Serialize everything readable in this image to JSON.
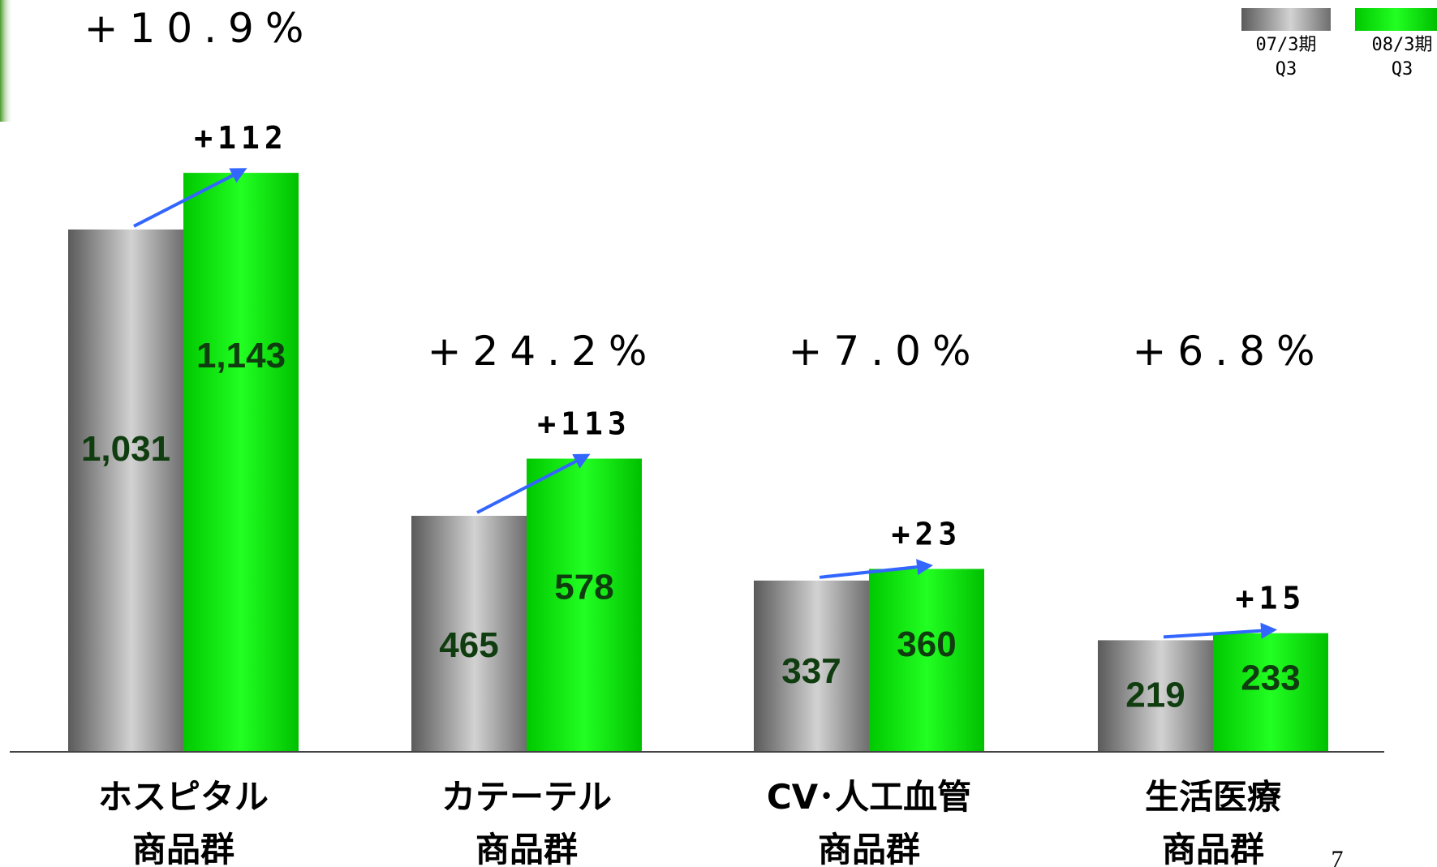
{
  "chart_data": {
    "type": "bar",
    "categories": [
      [
        "ホスピタル",
        "商品群"
      ],
      [
        "カテーテル",
        "商品群"
      ],
      [
        "CV･人工血管",
        "商品群"
      ],
      [
        "生活医療",
        "商品群"
      ]
    ],
    "series": [
      {
        "name": "07/3期 Q3",
        "values": [
          1031,
          465,
          337,
          219
        ],
        "color": "#a8a8a8"
      },
      {
        "name": "08/3期 Q3",
        "values": [
          1143,
          578,
          360,
          233
        ],
        "color": "#00dd00"
      }
    ],
    "value_labels": [
      [
        "1,031",
        "465",
        "337",
        "219"
      ],
      [
        "1,143",
        "578",
        "360",
        "233"
      ]
    ],
    "increase_labels": [
      "+112",
      "+113",
      "+23",
      "+15"
    ],
    "growth_labels": [
      "+10.9%",
      "+24.2%",
      "+7.0%",
      "+6.8%"
    ],
    "legend": [
      {
        "line1": "07/3期",
        "line2": "Q3"
      },
      {
        "line1": "08/3期",
        "line2": "Q3"
      }
    ],
    "legend_position": "top-right",
    "arrow_color": "#3366ff",
    "ylim": [
      0,
      1200
    ],
    "grid": false
  },
  "page_number": "7"
}
